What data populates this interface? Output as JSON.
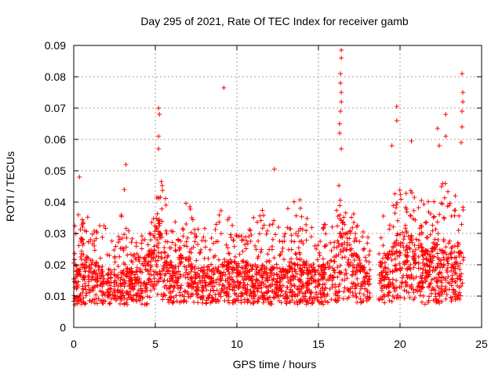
{
  "chart_data": {
    "type": "scatter",
    "title": "Day 295 of 2021, Rate Of TEC Index for receiver gamb",
    "xlabel": "GPS time / hours",
    "ylabel": "ROTI / TECUs",
    "xlim": [
      0,
      25
    ],
    "ylim": [
      0,
      0.09
    ],
    "x_ticks": [
      0,
      5,
      10,
      15,
      20,
      25
    ],
    "x_tick_labels": [
      "0",
      "5",
      "10",
      "15",
      "20",
      "25"
    ],
    "y_ticks": [
      0,
      0.01,
      0.02,
      0.03,
      0.04,
      0.05,
      0.06,
      0.07,
      0.08,
      0.09
    ],
    "y_tick_labels": [
      "0",
      "0.01",
      "0.02",
      "0.03",
      "0.04",
      "0.05",
      "0.06",
      "0.07",
      "0.08",
      "0.09"
    ],
    "grid": true,
    "marker": "+",
    "marker_color": "#ff0000",
    "data_gap_hours": [
      18.2,
      18.7
    ],
    "envelope": {
      "x": [
        0.0,
        0.5,
        1.0,
        1.5,
        2.0,
        2.5,
        3.0,
        3.5,
        4.0,
        4.5,
        5.0,
        5.3,
        5.6,
        6.0,
        6.5,
        7.0,
        7.5,
        8.0,
        8.5,
        9.0,
        9.5,
        10.0,
        10.5,
        11.0,
        11.5,
        12.0,
        12.5,
        13.0,
        13.5,
        14.0,
        14.5,
        15.0,
        15.5,
        16.0,
        16.3,
        16.6,
        17.0,
        17.5,
        18.2,
        18.7,
        19.0,
        19.5,
        20.0,
        20.5,
        21.0,
        21.5,
        22.0,
        22.5,
        23.0,
        23.5,
        23.9
      ],
      "y_low": [
        0.006,
        0.005,
        0.006,
        0.006,
        0.006,
        0.006,
        0.005,
        0.006,
        0.006,
        0.005,
        0.006,
        0.006,
        0.006,
        0.006,
        0.006,
        0.005,
        0.006,
        0.006,
        0.006,
        0.006,
        0.006,
        0.006,
        0.006,
        0.006,
        0.006,
        0.006,
        0.006,
        0.006,
        0.006,
        0.005,
        0.006,
        0.006,
        0.005,
        0.006,
        0.005,
        0.006,
        0.006,
        0.006,
        0.007,
        0.007,
        0.006,
        0.006,
        0.005,
        0.006,
        0.006,
        0.005,
        0.006,
        0.005,
        0.006,
        0.006,
        0.006
      ],
      "y_mid": [
        0.012,
        0.016,
        0.015,
        0.014,
        0.013,
        0.013,
        0.014,
        0.013,
        0.013,
        0.016,
        0.02,
        0.022,
        0.018,
        0.014,
        0.015,
        0.016,
        0.013,
        0.014,
        0.014,
        0.014,
        0.015,
        0.014,
        0.015,
        0.014,
        0.014,
        0.013,
        0.014,
        0.013,
        0.014,
        0.014,
        0.014,
        0.013,
        0.014,
        0.015,
        0.02,
        0.022,
        0.017,
        0.015,
        0.013,
        0.014,
        0.015,
        0.017,
        0.02,
        0.019,
        0.019,
        0.016,
        0.017,
        0.018,
        0.018,
        0.017,
        0.016
      ],
      "y_high": [
        0.03,
        0.04,
        0.035,
        0.036,
        0.03,
        0.028,
        0.036,
        0.03,
        0.028,
        0.033,
        0.04,
        0.048,
        0.04,
        0.03,
        0.036,
        0.038,
        0.034,
        0.03,
        0.031,
        0.036,
        0.035,
        0.031,
        0.033,
        0.034,
        0.036,
        0.035,
        0.033,
        0.036,
        0.038,
        0.039,
        0.036,
        0.032,
        0.031,
        0.034,
        0.045,
        0.046,
        0.04,
        0.034,
        0.028,
        0.03,
        0.034,
        0.04,
        0.045,
        0.043,
        0.046,
        0.038,
        0.04,
        0.045,
        0.045,
        0.043,
        0.036
      ]
    },
    "notable_points": [
      {
        "x": 0.35,
        "y": 0.048
      },
      {
        "x": 3.2,
        "y": 0.052
      },
      {
        "x": 3.1,
        "y": 0.044
      },
      {
        "x": 5.2,
        "y": 0.07
      },
      {
        "x": 5.25,
        "y": 0.068
      },
      {
        "x": 5.2,
        "y": 0.061
      },
      {
        "x": 5.2,
        "y": 0.057
      },
      {
        "x": 9.2,
        "y": 0.0765
      },
      {
        "x": 12.3,
        "y": 0.0505
      },
      {
        "x": 16.4,
        "y": 0.0885
      },
      {
        "x": 16.4,
        "y": 0.086
      },
      {
        "x": 16.35,
        "y": 0.081
      },
      {
        "x": 16.35,
        "y": 0.078
      },
      {
        "x": 16.4,
        "y": 0.075
      },
      {
        "x": 16.4,
        "y": 0.072
      },
      {
        "x": 16.35,
        "y": 0.069
      },
      {
        "x": 16.3,
        "y": 0.065
      },
      {
        "x": 16.3,
        "y": 0.062
      },
      {
        "x": 16.4,
        "y": 0.057
      },
      {
        "x": 19.8,
        "y": 0.0705
      },
      {
        "x": 19.8,
        "y": 0.066
      },
      {
        "x": 19.5,
        "y": 0.058
      },
      {
        "x": 20.7,
        "y": 0.0595
      },
      {
        "x": 22.3,
        "y": 0.0635
      },
      {
        "x": 22.4,
        "y": 0.058
      },
      {
        "x": 22.8,
        "y": 0.068
      },
      {
        "x": 22.8,
        "y": 0.061
      },
      {
        "x": 23.8,
        "y": 0.081
      },
      {
        "x": 23.85,
        "y": 0.075
      },
      {
        "x": 23.85,
        "y": 0.072
      },
      {
        "x": 23.8,
        "y": 0.069
      },
      {
        "x": 23.8,
        "y": 0.064
      },
      {
        "x": 23.75,
        "y": 0.059
      }
    ]
  }
}
